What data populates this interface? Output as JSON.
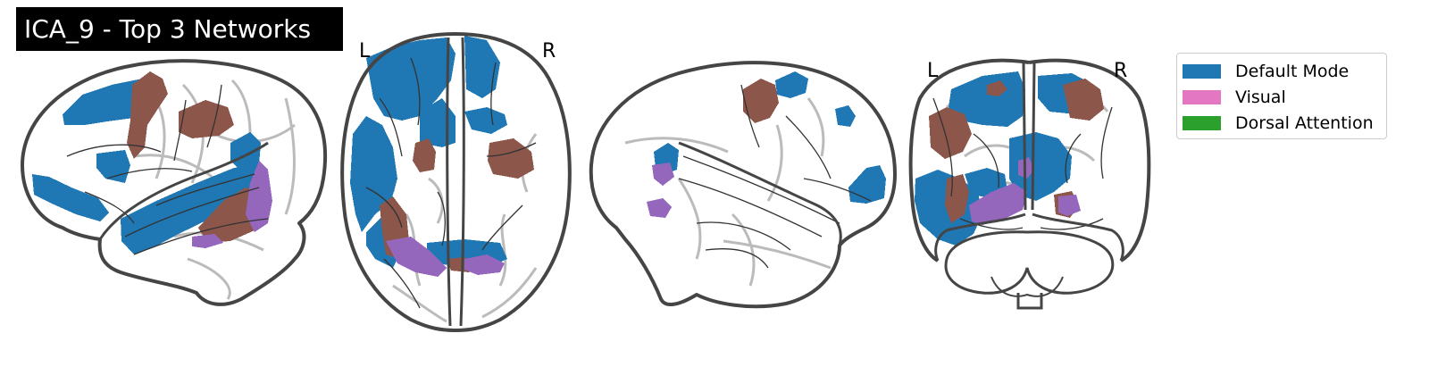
{
  "title": "ICA_9 - Top 3 Networks",
  "views": {
    "axial": {
      "left_label": "L",
      "right_label": "R"
    },
    "coronal": {
      "left_label": "L",
      "right_label": "R"
    }
  },
  "colors": {
    "default_mode": "#1f77b4",
    "visual": "#e377c2",
    "dorsal_attention": "#2ca02c",
    "overlap_brown": "#8c564b",
    "overlap_purple": "#9467bd",
    "outline": "#454545",
    "sulci": "#b4b4b4"
  },
  "legend": {
    "items": [
      {
        "label": "Default Mode",
        "color": "#1f77b4"
      },
      {
        "label": "Visual",
        "color": "#e377c2"
      },
      {
        "label": "Dorsal Attention",
        "color": "#2ca02c"
      }
    ]
  }
}
